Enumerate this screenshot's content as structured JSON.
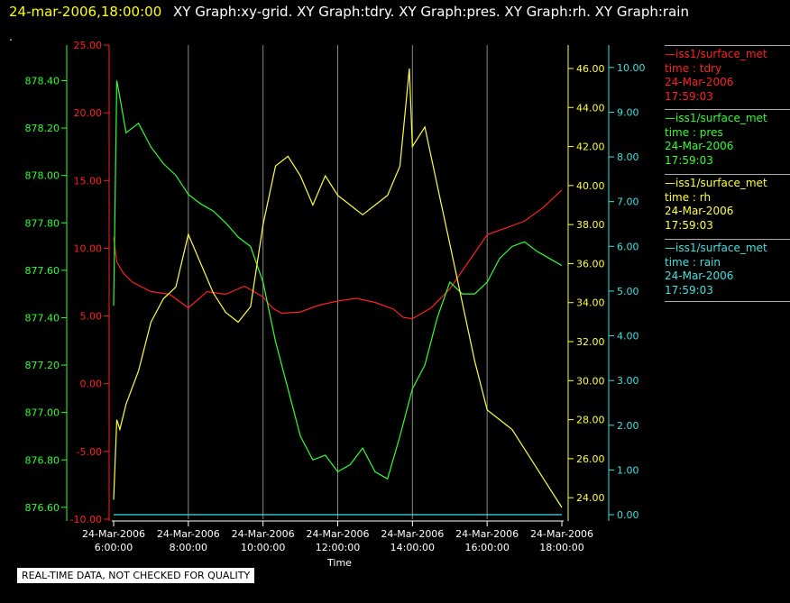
{
  "header": {
    "timestamp": "24-mar-2006,18:00:00",
    "titles": "XY Graph:xy-grid.  XY Graph:tdry.  XY Graph:pres.  XY Graph:rh.  XY Graph:rain"
  },
  "dot": ".",
  "notice": "REAL-TIME DATA, NOT CHECKED FOR QUALITY",
  "legend": [
    {
      "name": "—iss1/surface_met",
      "var": "time : tdry",
      "date": "24-Mar-2006",
      "time": "17:59:03",
      "color": "#ff2020"
    },
    {
      "name": "—iss1/surface_met",
      "var": "time : pres",
      "date": "24-Mar-2006",
      "time": "17:59:03",
      "color": "#30ff30"
    },
    {
      "name": "—iss1/surface_met",
      "var": "time : rh",
      "date": "24-Mar-2006",
      "time": "17:59:03",
      "color": "#ffff40"
    },
    {
      "name": "—iss1/surface_met",
      "var": "time : rain",
      "date": "24-Mar-2006",
      "time": "17:59:03",
      "color": "#40e0e0"
    }
  ],
  "chart_data": {
    "type": "line",
    "xlabel": "Time",
    "x_ticks": [
      {
        "date": "24-Mar-2006",
        "time": "6:00:00"
      },
      {
        "date": "24-Mar-2006",
        "time": "8:00:00"
      },
      {
        "date": "24-Mar-2006",
        "time": "10:00:00"
      },
      {
        "date": "24-Mar-2006",
        "time": "12:00:00"
      },
      {
        "date": "24-Mar-2006",
        "time": "14:00:00"
      },
      {
        "date": "24-Mar-2006",
        "time": "16:00:00"
      },
      {
        "date": "24-Mar-2006",
        "time": "18:00:00"
      }
    ],
    "xlim": [
      "2006-03-24 06:00",
      "2006-03-24 18:00"
    ],
    "grid": "vertical",
    "axes": {
      "pres": {
        "ticks": [
          "878.40",
          "878.20",
          "878.00",
          "877.80",
          "877.60",
          "877.40",
          "877.20",
          "877.00",
          "876.80",
          "876.60"
        ],
        "ylim": [
          876.55,
          878.55
        ],
        "color": "#30ff30"
      },
      "tdry": {
        "ticks": [
          "25.00",
          "20.00",
          "15.00",
          "10.00",
          "5.00",
          "0.00",
          "-5.00",
          "-10.00"
        ],
        "ylim": [
          -10,
          25
        ],
        "color": "#ff2020"
      },
      "rh": {
        "ticks": [
          "46.00",
          "44.00",
          "42.00",
          "40.00",
          "38.00",
          "36.00",
          "34.00",
          "32.00",
          "30.00",
          "28.00",
          "26.00",
          "24.00"
        ],
        "ylim": [
          22.9,
          47.2
        ],
        "color": "#ffff40"
      },
      "rain": {
        "ticks": [
          "10.00",
          "9.00",
          "8.00",
          "7.00",
          "6.00",
          "5.00",
          "4.00",
          "3.00",
          "2.00",
          "1.00",
          "0.00"
        ],
        "ylim": [
          -0.1,
          10.5
        ],
        "color": "#40e0e0"
      }
    },
    "series": [
      {
        "name": "tdry",
        "axis": "tdry",
        "color": "#ff2020",
        "x": [
          "06:00",
          "06:05",
          "06:15",
          "06:30",
          "07:00",
          "07:30",
          "08:00",
          "08:30",
          "09:00",
          "09:30",
          "10:00",
          "10:15",
          "10:30",
          "11:00",
          "11:30",
          "12:00",
          "12:30",
          "13:00",
          "13:30",
          "13:45",
          "14:00",
          "14:30",
          "15:00",
          "15:30",
          "16:00",
          "16:30",
          "17:00",
          "17:30",
          "18:00"
        ],
        "y": [
          10.8,
          9.0,
          8.2,
          7.5,
          6.8,
          6.6,
          5.6,
          6.8,
          6.6,
          7.2,
          6.4,
          5.6,
          5.2,
          5.3,
          5.8,
          6.1,
          6.3,
          6.0,
          5.5,
          4.9,
          4.8,
          5.6,
          7.0,
          9.0,
          11.0,
          11.5,
          12.0,
          13.0,
          14.3
        ]
      },
      {
        "name": "pres",
        "axis": "pres",
        "color": "#30ff30",
        "x": [
          "06:00",
          "06:05",
          "06:10",
          "06:20",
          "06:40",
          "07:00",
          "07:20",
          "07:40",
          "08:00",
          "08:20",
          "08:40",
          "09:00",
          "09:20",
          "09:40",
          "10:00",
          "10:20",
          "10:40",
          "11:00",
          "11:20",
          "11:40",
          "12:00",
          "12:20",
          "12:40",
          "13:00",
          "13:20",
          "13:40",
          "14:00",
          "14:20",
          "14:40",
          "15:00",
          "15:20",
          "15:40",
          "16:00",
          "16:20",
          "16:40",
          "17:00",
          "17:20",
          "17:40",
          "18:00"
        ],
        "y": [
          877.45,
          878.4,
          878.33,
          878.18,
          878.22,
          878.12,
          878.05,
          878.0,
          877.92,
          877.88,
          877.85,
          877.8,
          877.74,
          877.7,
          877.55,
          877.3,
          877.1,
          876.9,
          876.8,
          876.82,
          876.75,
          876.78,
          876.85,
          876.75,
          876.72,
          876.9,
          877.1,
          877.2,
          877.4,
          877.55,
          877.5,
          877.5,
          877.55,
          877.65,
          877.7,
          877.72,
          877.68,
          877.65,
          877.62
        ]
      },
      {
        "name": "rh",
        "axis": "rh",
        "color": "#ffff40",
        "x": [
          "06:00",
          "06:05",
          "06:10",
          "06:20",
          "06:40",
          "07:00",
          "07:20",
          "07:40",
          "08:00",
          "08:20",
          "08:40",
          "09:00",
          "09:20",
          "09:40",
          "10:00",
          "10:20",
          "10:40",
          "11:00",
          "11:20",
          "11:40",
          "12:00",
          "12:20",
          "12:40",
          "13:00",
          "13:20",
          "13:40",
          "13:55",
          "14:00",
          "14:20",
          "14:40",
          "15:00",
          "15:20",
          "15:40",
          "16:00",
          "16:20",
          "16:40",
          "17:00",
          "17:20",
          "17:40",
          "18:00"
        ],
        "y": [
          23.9,
          28.0,
          27.5,
          28.8,
          30.5,
          33.0,
          34.2,
          34.8,
          37.5,
          36.0,
          34.5,
          33.5,
          33.0,
          33.8,
          38.0,
          41.0,
          41.5,
          40.5,
          39.0,
          40.5,
          39.5,
          39.0,
          38.5,
          39.0,
          39.5,
          41.0,
          46.0,
          42.0,
          43.0,
          40.0,
          37.0,
          34.0,
          31.0,
          28.5,
          28.0,
          27.5,
          26.5,
          25.5,
          24.5,
          23.5
        ]
      },
      {
        "name": "rain",
        "axis": "rain",
        "color": "#40e0e0",
        "x": [
          "06:00",
          "18:00"
        ],
        "y": [
          0.0,
          0.0
        ]
      }
    ]
  }
}
